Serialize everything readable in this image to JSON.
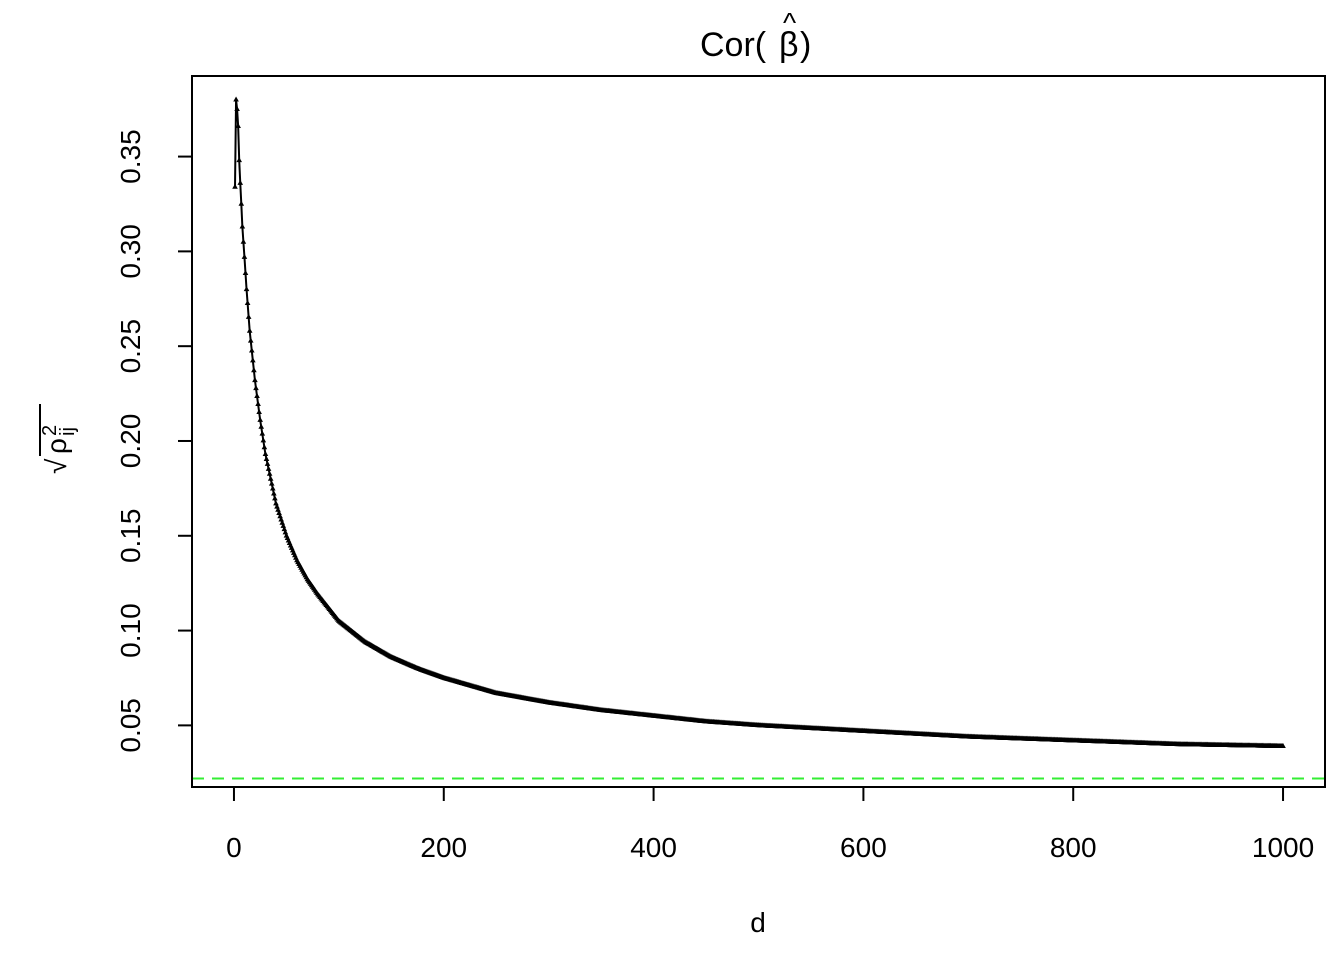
{
  "chart_data": {
    "type": "line",
    "title": {
      "prefix": "Cor(",
      "symbol": "β",
      "hat": "^",
      "suffix": ")"
    },
    "xlabel": "d",
    "ylabel": {
      "root": "√",
      "symbol": "ρ",
      "superscript": "2",
      "subscript": "ij"
    },
    "xlim": [
      -40,
      1040
    ],
    "ylim": [
      0.0175,
      0.3925
    ],
    "x_ticks": [
      {
        "value": 0,
        "label": "0"
      },
      {
        "value": 200,
        "label": "200"
      },
      {
        "value": 400,
        "label": "400"
      },
      {
        "value": 600,
        "label": "600"
      },
      {
        "value": 800,
        "label": "800"
      },
      {
        "value": 1000,
        "label": "1000"
      }
    ],
    "y_ticks": [
      {
        "value": 0.05,
        "label": "0.05"
      },
      {
        "value": 0.1,
        "label": "0.10"
      },
      {
        "value": 0.15,
        "label": "0.15"
      },
      {
        "value": 0.2,
        "label": "0.20"
      },
      {
        "value": 0.25,
        "label": "0.25"
      },
      {
        "value": 0.3,
        "label": "0.30"
      },
      {
        "value": 0.35,
        "label": "0.35"
      }
    ],
    "series": [
      {
        "marker": "triangle",
        "color": "#000000",
        "x_start": 1,
        "x_end": 1000,
        "x_step": 1,
        "points": [
          [
            1,
            0.334
          ],
          [
            2,
            0.38
          ],
          [
            3,
            0.375
          ],
          [
            4,
            0.366
          ],
          [
            5,
            0.348
          ],
          [
            6,
            0.336
          ],
          [
            7,
            0.325
          ],
          [
            8,
            0.313
          ],
          [
            10,
            0.297
          ],
          [
            12,
            0.28
          ],
          [
            15,
            0.258
          ],
          [
            20,
            0.232
          ],
          [
            25,
            0.211
          ],
          [
            30,
            0.193
          ],
          [
            40,
            0.167
          ],
          [
            50,
            0.15
          ],
          [
            60,
            0.137
          ],
          [
            70,
            0.127
          ],
          [
            80,
            0.119
          ],
          [
            100,
            0.105
          ],
          [
            125,
            0.094
          ],
          [
            150,
            0.086
          ],
          [
            175,
            0.08
          ],
          [
            200,
            0.075
          ],
          [
            250,
            0.067
          ],
          [
            300,
            0.062
          ],
          [
            350,
            0.058
          ],
          [
            400,
            0.055
          ],
          [
            450,
            0.052
          ],
          [
            500,
            0.05
          ],
          [
            600,
            0.047
          ],
          [
            700,
            0.044
          ],
          [
            800,
            0.042
          ],
          [
            900,
            0.04
          ],
          [
            1000,
            0.039
          ]
        ]
      }
    ],
    "reference_line": {
      "y": 0.022,
      "color": "#33ee33",
      "style": "dashed"
    }
  }
}
